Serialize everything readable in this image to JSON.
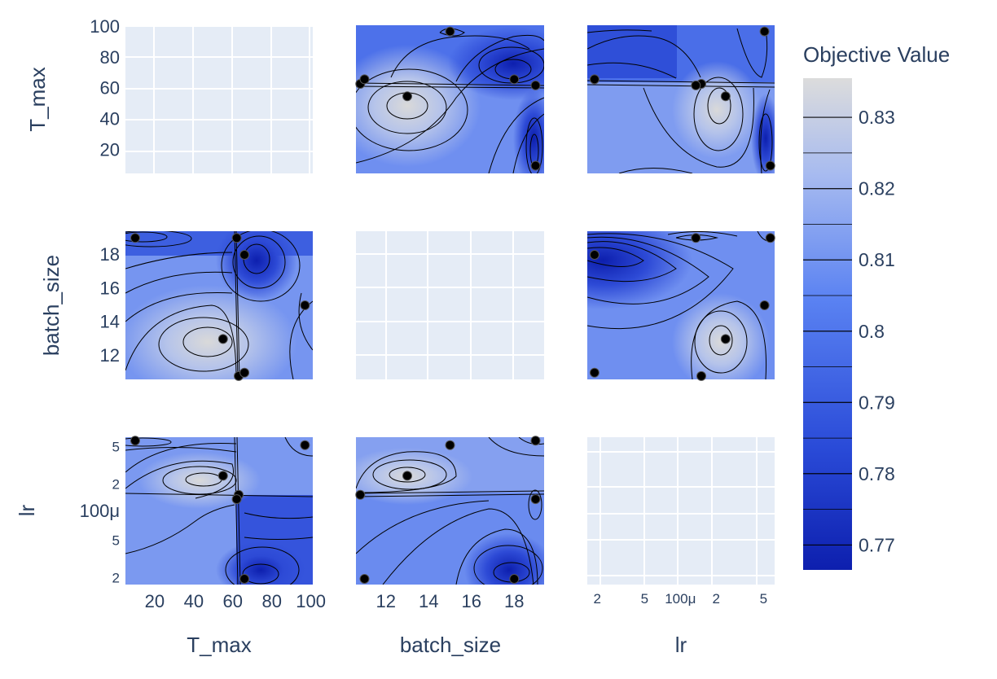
{
  "chart_data": {
    "type": "contour",
    "colorbar": {
      "title": "Objective Value",
      "tick_values": [
        0.77,
        0.78,
        0.79,
        0.8,
        0.81,
        0.82,
        0.83
      ],
      "tick_labels": [
        "0.77",
        "0.78",
        "0.79",
        "0.8",
        "0.81",
        "0.82",
        "0.83"
      ],
      "range": [
        0.7665,
        0.8355
      ],
      "colors": [
        "#0d1fae",
        "#4a74f0",
        "#d9d9d9"
      ]
    },
    "params": [
      {
        "name": "T_max",
        "label": "T_max",
        "scale": "linear",
        "range": [
          5,
          101
        ],
        "tick_values": [
          20,
          40,
          60,
          80,
          100
        ],
        "tick_labels": [
          "20",
          "40",
          "60",
          "80",
          "100"
        ]
      },
      {
        "name": "batch_size",
        "label": "batch_size",
        "scale": "linear",
        "range": [
          10.6,
          19.4
        ],
        "tick_values": [
          12,
          14,
          16,
          18
        ],
        "tick_labels": [
          "12",
          "14",
          "16",
          "18"
        ]
      },
      {
        "name": "lr",
        "label": "lr",
        "scale": "log",
        "range": [
          1.65e-05,
          0.00062
        ],
        "tick_values": [
          2e-05,
          5e-05,
          0.0001,
          0.0002,
          0.0005
        ],
        "tick_labels": [
          "2",
          "5",
          "100μ",
          "2",
          "5"
        ]
      }
    ],
    "trials": [
      {
        "T_max": 97,
        "batch_size": 15,
        "lr": 0.00051
      },
      {
        "T_max": 66,
        "batch_size": 18,
        "lr": 1.9e-05
      },
      {
        "T_max": 55,
        "batch_size": 13,
        "lr": 0.00024
      },
      {
        "T_max": 63,
        "batch_size": 10.8,
        "lr": 0.00015
      },
      {
        "T_max": 62,
        "batch_size": 19,
        "lr": 0.000135
      },
      {
        "T_max": 10,
        "batch_size": 19,
        "lr": 0.00057
      },
      {
        "T_max": 66,
        "batch_size": 11,
        "lr": 1.9e-05
      }
    ],
    "grid": true,
    "legend": "none"
  }
}
